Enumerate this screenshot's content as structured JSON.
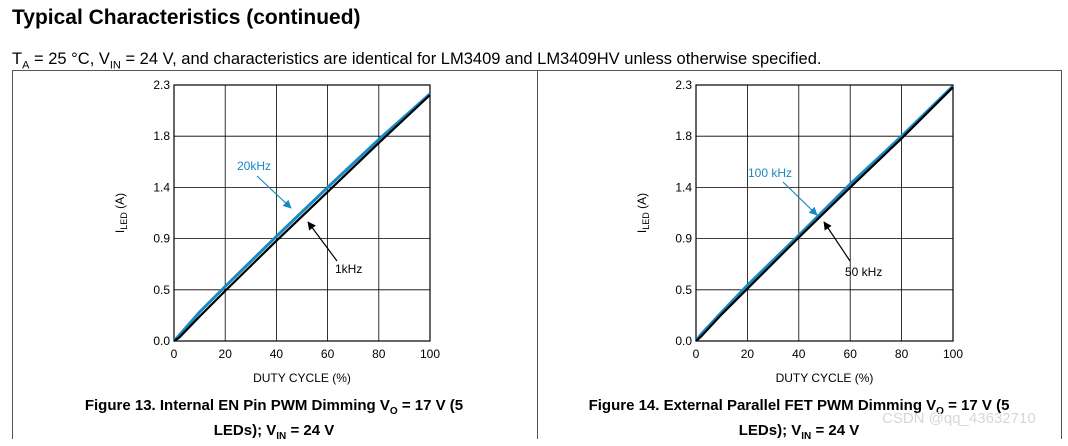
{
  "header": {
    "section_title": "Typical Characteristics (continued)",
    "conditions": {
      "ta_symbol": "T",
      "ta_sub": "A",
      "ta_value": " = 25 °C, V",
      "vin_sub": "IN",
      "rest": " = 24 V, and characteristics are identical for LM3409 and LM3409HV unless otherwise specified."
    }
  },
  "colors": {
    "blue": "#1789c4",
    "black": "#000000",
    "grid": "#000000"
  },
  "charts": [
    {
      "caption": {
        "line1_a": "Figure 13. Internal EN Pin PWM Dimming V",
        "line1_sub": "O",
        "line1_b": " = 17 V (5",
        "line2_a": "LEDs); V",
        "line2_sub": "IN",
        "line2_b": " = 24 V"
      },
      "ylabel_main": "I",
      "ylabel_sub": "LED",
      "ylabel_unit": " (A)",
      "xlabel": "DUTY CYCLE (%)",
      "annotations": [
        {
          "text": "20kHz",
          "series": 0
        },
        {
          "text": "1kHz",
          "series": 1
        }
      ]
    },
    {
      "caption": {
        "line1_a": "Figure 14. External Parallel FET PWM Dimming V",
        "line1_sub": "O",
        "line1_b": " = 17 V (5",
        "line2_a": "LEDs); V",
        "line2_sub": "IN",
        "line2_b": " = 24 V"
      },
      "ylabel_main": "I",
      "ylabel_sub": "LED",
      "ylabel_unit": " (A)",
      "xlabel": "DUTY CYCLE (%)",
      "annotations": [
        {
          "text": "100 kHz",
          "series": 0
        },
        {
          "text": "50 kHz",
          "series": 1
        }
      ]
    }
  ],
  "chart_data": [
    {
      "type": "line",
      "xlabel": "DUTY CYCLE (%)",
      "ylabel": "ILED (A)",
      "xlim": [
        0,
        100
      ],
      "ylim": [
        0.0,
        2.3
      ],
      "x_ticks": [
        "0",
        "20",
        "40",
        "60",
        "80",
        "100"
      ],
      "y_ticks": [
        "0.0",
        "0.5",
        "0.9",
        "1.4",
        "1.8",
        "2.3"
      ],
      "grid": true,
      "series": [
        {
          "name": "20kHz",
          "color": "#1789c4",
          "x": [
            0,
            2,
            10,
            20,
            40,
            60,
            80,
            100
          ],
          "y": [
            0.0,
            0.05,
            0.26,
            0.49,
            0.94,
            1.38,
            1.81,
            2.22
          ]
        },
        {
          "name": "1kHz",
          "color": "#000000",
          "x": [
            0,
            2,
            10,
            20,
            40,
            60,
            80,
            100
          ],
          "y": [
            0.0,
            0.03,
            0.22,
            0.45,
            0.9,
            1.34,
            1.78,
            2.21
          ]
        }
      ]
    },
    {
      "type": "line",
      "xlabel": "DUTY CYCLE (%)",
      "ylabel": "ILED (A)",
      "xlim": [
        0,
        100
      ],
      "ylim": [
        0.0,
        2.3
      ],
      "x_ticks": [
        "0",
        "20",
        "40",
        "60",
        "80",
        "100"
      ],
      "y_ticks": [
        "0.0",
        "0.5",
        "0.9",
        "1.4",
        "1.8",
        "2.3"
      ],
      "grid": true,
      "series": [
        {
          "name": "100 kHz",
          "color": "#1789c4",
          "x": [
            0,
            2,
            10,
            20,
            40,
            60,
            80,
            100
          ],
          "y": [
            0.0,
            0.06,
            0.26,
            0.5,
            0.95,
            1.41,
            1.84,
            2.29
          ]
        },
        {
          "name": "50 kHz",
          "color": "#000000",
          "x": [
            0,
            2,
            10,
            20,
            40,
            60,
            80,
            100
          ],
          "y": [
            0.0,
            0.04,
            0.24,
            0.47,
            0.93,
            1.38,
            1.82,
            2.28
          ]
        }
      ]
    }
  ],
  "watermark": "CSDN @qq_43632710"
}
